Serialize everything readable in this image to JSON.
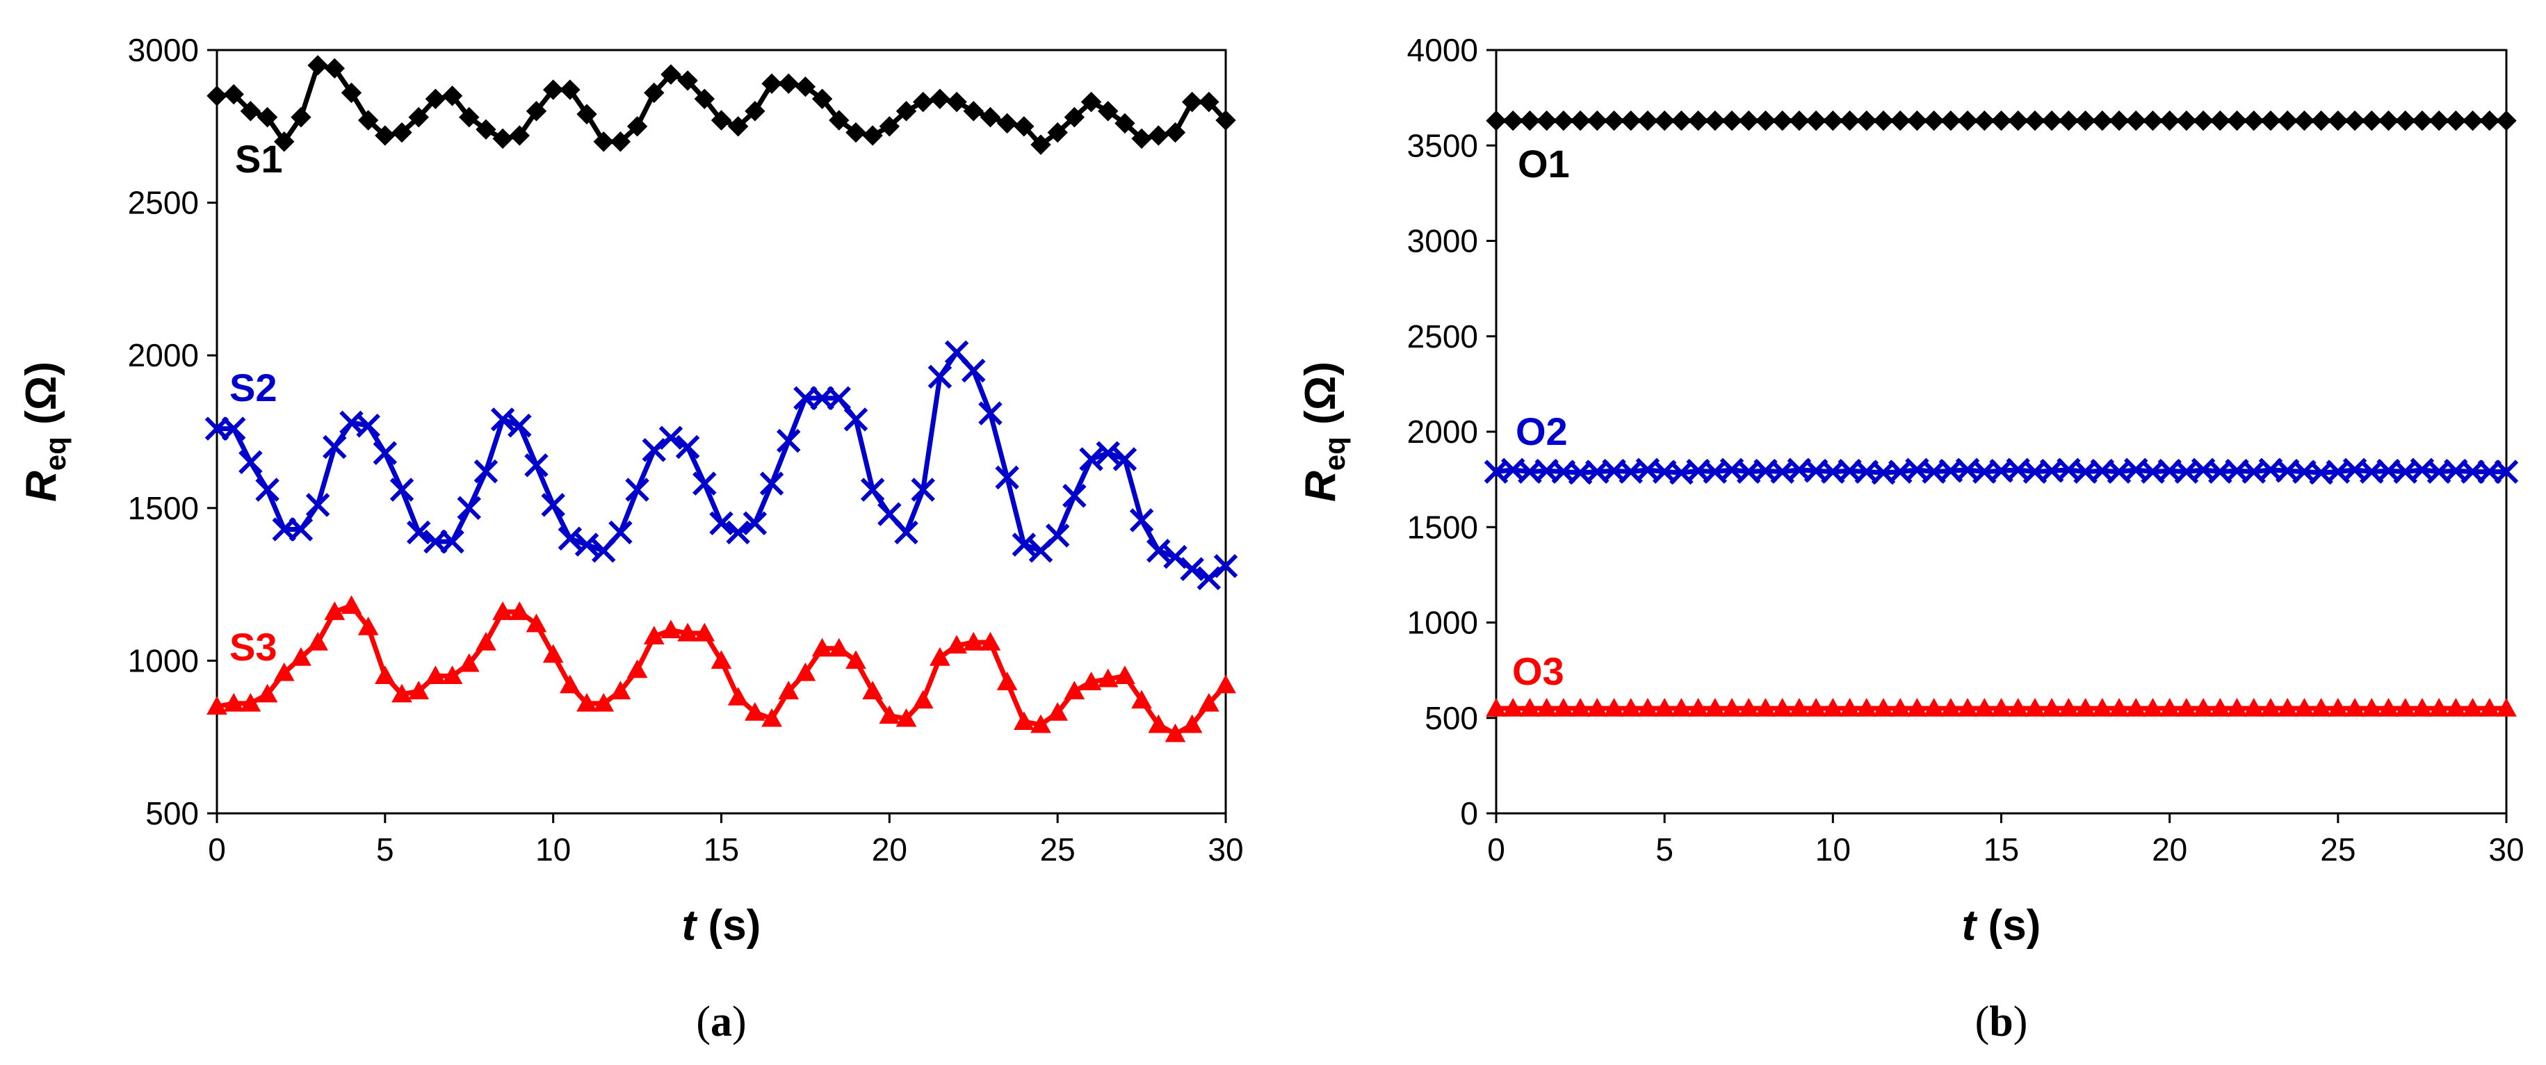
{
  "chart_data": [
    {
      "type": "line",
      "caption": "a",
      "xlabel": {
        "var": "t",
        "unit": "(s)"
      },
      "ylabel": {
        "var": "R",
        "sub": "eq",
        "unit": "(Ω)"
      },
      "xlim": [
        0,
        30
      ],
      "ylim": [
        500,
        3000
      ],
      "xticks": [
        0,
        5,
        10,
        15,
        20,
        25,
        30
      ],
      "yticks": [
        500,
        1000,
        1500,
        2000,
        2500,
        3000
      ],
      "x": [
        0,
        0.5,
        1,
        1.5,
        2,
        2.5,
        3,
        3.5,
        4,
        4.5,
        5,
        5.5,
        6,
        6.5,
        7,
        7.5,
        8,
        8.5,
        9,
        9.5,
        10,
        10.5,
        11,
        11.5,
        12,
        12.5,
        13,
        13.5,
        14,
        14.5,
        15,
        15.5,
        16,
        16.5,
        17,
        17.5,
        18,
        18.5,
        19,
        19.5,
        20,
        20.5,
        21,
        21.5,
        22,
        22.5,
        23,
        23.5,
        24,
        24.5,
        25,
        25.5,
        26,
        26.5,
        27,
        27.5,
        28,
        28.5,
        29,
        29.5,
        30
      ],
      "series": [
        {
          "name": "S1",
          "label": "S1",
          "color": "#000000",
          "marker": "diamond",
          "values": [
            2850,
            2855,
            2800,
            2780,
            2700,
            2780,
            2950,
            2940,
            2860,
            2770,
            2720,
            2730,
            2780,
            2840,
            2850,
            2780,
            2740,
            2710,
            2720,
            2800,
            2870,
            2870,
            2790,
            2700,
            2700,
            2750,
            2860,
            2920,
            2900,
            2840,
            2770,
            2750,
            2800,
            2890,
            2890,
            2880,
            2840,
            2770,
            2730,
            2720,
            2750,
            2800,
            2830,
            2840,
            2830,
            2800,
            2780,
            2760,
            2750,
            2690,
            2730,
            2780,
            2830,
            2800,
            2760,
            2710,
            2720,
            2730,
            2830,
            2830,
            2770
          ]
        },
        {
          "name": "S2",
          "label": "S2",
          "color": "#0000cc",
          "marker": "x",
          "values": [
            1760,
            1760,
            1650,
            1560,
            1430,
            1430,
            1510,
            1700,
            1780,
            1770,
            1680,
            1560,
            1420,
            1390,
            1390,
            1500,
            1620,
            1790,
            1770,
            1640,
            1510,
            1400,
            1380,
            1360,
            1420,
            1560,
            1690,
            1730,
            1700,
            1580,
            1450,
            1420,
            1450,
            1580,
            1720,
            1860,
            1860,
            1860,
            1790,
            1560,
            1480,
            1420,
            1560,
            1930,
            2010,
            1950,
            1810,
            1600,
            1380,
            1360,
            1410,
            1540,
            1660,
            1680,
            1660,
            1460,
            1360,
            1340,
            1300,
            1270,
            1310
          ]
        },
        {
          "name": "S3",
          "label": "S3",
          "color": "#ff0000",
          "marker": "triangle",
          "values": [
            850,
            860,
            860,
            890,
            960,
            1010,
            1060,
            1160,
            1180,
            1110,
            950,
            890,
            900,
            950,
            950,
            990,
            1060,
            1160,
            1160,
            1120,
            1020,
            920,
            860,
            860,
            900,
            970,
            1080,
            1100,
            1090,
            1090,
            1000,
            880,
            830,
            810,
            900,
            960,
            1040,
            1040,
            1000,
            900,
            820,
            810,
            870,
            1010,
            1050,
            1060,
            1060,
            930,
            800,
            790,
            830,
            900,
            930,
            940,
            950,
            870,
            790,
            760,
            790,
            860,
            920
          ]
        }
      ]
    },
    {
      "type": "line",
      "caption": "b",
      "xlabel": {
        "var": "t",
        "unit": "(s)"
      },
      "ylabel": {
        "var": "R",
        "sub": "eq",
        "unit": "(Ω)"
      },
      "xlim": [
        0,
        30
      ],
      "ylim": [
        0,
        4000
      ],
      "xticks": [
        0,
        5,
        10,
        15,
        20,
        25,
        30
      ],
      "yticks": [
        0,
        500,
        1000,
        1500,
        2000,
        2500,
        3000,
        3500,
        4000
      ],
      "x": [
        0,
        0.5,
        1,
        1.5,
        2,
        2.5,
        3,
        3.5,
        4,
        4.5,
        5,
        5.5,
        6,
        6.5,
        7,
        7.5,
        8,
        8.5,
        9,
        9.5,
        10,
        10.5,
        11,
        11.5,
        12,
        12.5,
        13,
        13.5,
        14,
        14.5,
        15,
        15.5,
        16,
        16.5,
        17,
        17.5,
        18,
        18.5,
        19,
        19.5,
        20,
        20.5,
        21,
        21.5,
        22,
        22.5,
        23,
        23.5,
        24,
        24.5,
        25,
        25.5,
        26,
        26.5,
        27,
        27.5,
        28,
        28.5,
        29,
        29.5,
        30
      ],
      "series": [
        {
          "name": "O1",
          "label": "O1",
          "color": "#000000",
          "marker": "diamond",
          "values": [
            3630,
            3630,
            3630,
            3630,
            3630,
            3630,
            3630,
            3630,
            3630,
            3630,
            3630,
            3630,
            3630,
            3630,
            3630,
            3630,
            3630,
            3630,
            3630,
            3630,
            3630,
            3630,
            3630,
            3630,
            3630,
            3630,
            3630,
            3630,
            3630,
            3630,
            3630,
            3630,
            3630,
            3630,
            3630,
            3630,
            3630,
            3630,
            3630,
            3630,
            3630,
            3630,
            3630,
            3630,
            3630,
            3630,
            3630,
            3630,
            3630,
            3630,
            3630,
            3630,
            3630,
            3630,
            3630,
            3630,
            3630,
            3630,
            3630,
            3630,
            3630
          ]
        },
        {
          "name": "O2",
          "label": "O2",
          "color": "#0000cc",
          "marker": "x",
          "values": [
            1790,
            1800,
            1790,
            1795,
            1790,
            1785,
            1790,
            1795,
            1790,
            1800,
            1790,
            1785,
            1795,
            1790,
            1800,
            1790,
            1795,
            1790,
            1800,
            1795,
            1790,
            1795,
            1790,
            1785,
            1790,
            1800,
            1790,
            1795,
            1800,
            1790,
            1795,
            1800,
            1790,
            1795,
            1800,
            1790,
            1795,
            1790,
            1800,
            1790,
            1795,
            1790,
            1800,
            1790,
            1795,
            1790,
            1800,
            1795,
            1790,
            1785,
            1790,
            1800,
            1790,
            1795,
            1790,
            1800,
            1790,
            1795,
            1790,
            1790,
            1790
          ]
        },
        {
          "name": "O3",
          "label": "O3",
          "color": "#ff0000",
          "marker": "triangle",
          "values": [
            550,
            550,
            550,
            550,
            550,
            550,
            550,
            550,
            550,
            550,
            550,
            550,
            550,
            550,
            550,
            550,
            550,
            550,
            550,
            550,
            550,
            550,
            550,
            550,
            550,
            550,
            550,
            550,
            550,
            550,
            550,
            550,
            550,
            550,
            550,
            550,
            550,
            550,
            550,
            550,
            550,
            550,
            550,
            550,
            550,
            550,
            550,
            550,
            550,
            550,
            550,
            550,
            550,
            550,
            550,
            550,
            550,
            550,
            550,
            550,
            550
          ]
        }
      ]
    }
  ]
}
